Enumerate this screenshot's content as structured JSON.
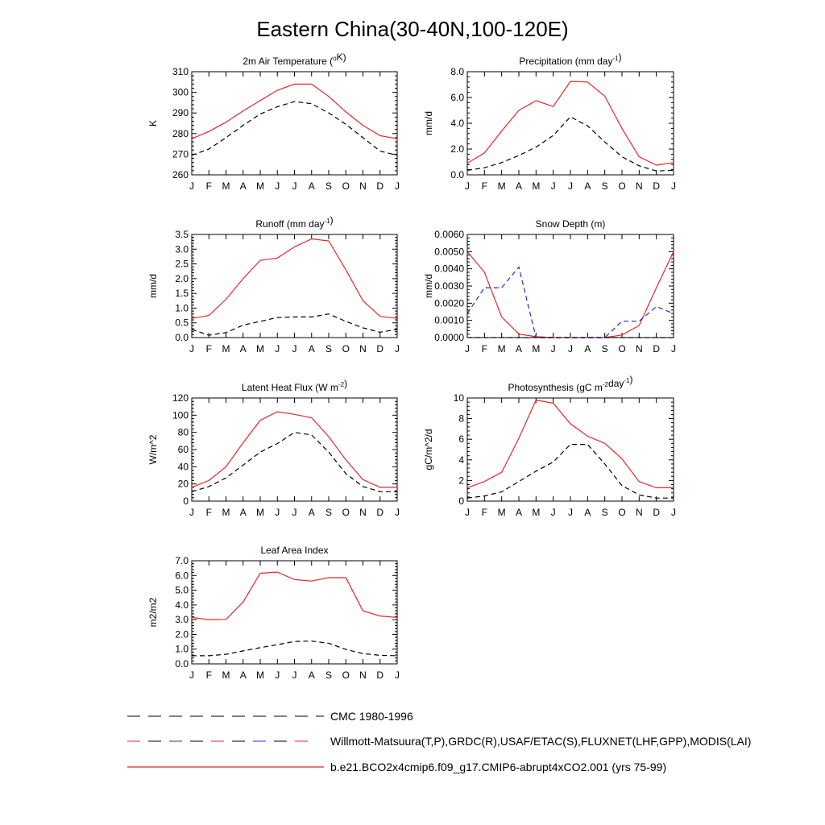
{
  "figure": {
    "title": "Eastern China(30-40N,100-120E)"
  },
  "colors": {
    "model": "#e8262a",
    "observed_black": "#000000",
    "observed_blue": "#1d2fd6",
    "axis": "#000000"
  },
  "legend": {
    "entries": [
      {
        "label": "CMC 1980-1996",
        "style": "dashed",
        "color": "#000000"
      },
      {
        "label": "Willmott-Matsuura(T,P),GRDC(R),USAF/ETAC(S),FLUXNET(LHF,GPP),MODIS(LAI)",
        "style": "dashed-multi",
        "color": "#e8262a"
      },
      {
        "label": "b.e21.BCO2x4cmip6.f09_g17.CMIP6-abrupt4xCO2.001 (yrs 75-99)",
        "style": "solid",
        "color": "#e8262a"
      }
    ]
  },
  "chart_data": [
    {
      "type": "line",
      "title_main": "2m Air Temperature (",
      "title_sup": "o",
      "title_end": "K)",
      "ylabel": "K",
      "x": [
        "J",
        "F",
        "M",
        "A",
        "M",
        "J",
        "J",
        "A",
        "S",
        "O",
        "N",
        "D",
        "J"
      ],
      "ylim": [
        260,
        310
      ],
      "yticks": [
        "260",
        "270",
        "280",
        "290",
        "300",
        "310"
      ],
      "grid": false,
      "series": [
        {
          "role": "model",
          "style": "solid",
          "color": "#e8262a",
          "values": [
            277.5,
            281,
            285.5,
            291,
            296,
            301,
            304,
            304,
            298,
            290.5,
            284,
            279,
            277.5
          ]
        },
        {
          "role": "observed",
          "style": "dashed",
          "color": "#000000",
          "values": [
            269.5,
            272.5,
            278,
            284,
            289.5,
            293,
            295.5,
            294.5,
            290,
            284.5,
            278,
            271.5,
            269.5
          ]
        }
      ]
    },
    {
      "type": "line",
      "title_main": "Precipitation (mm day",
      "title_sup": "-1",
      "title_end": ")",
      "ylabel": "mm/d",
      "x": [
        "J",
        "F",
        "M",
        "A",
        "M",
        "J",
        "J",
        "A",
        "S",
        "O",
        "N",
        "D",
        "J"
      ],
      "ylim": [
        0,
        8
      ],
      "yticks": [
        "0.0",
        "2.0",
        "4.0",
        "6.0",
        "8.0"
      ],
      "grid": false,
      "series": [
        {
          "role": "model",
          "style": "solid",
          "color": "#e8262a",
          "values": [
            0.9,
            1.7,
            3.4,
            5.0,
            5.75,
            5.3,
            7.25,
            7.2,
            6.1,
            3.6,
            1.4,
            0.75,
            0.95
          ]
        },
        {
          "role": "observed",
          "style": "dashed",
          "color": "#000000",
          "values": [
            0.35,
            0.55,
            0.95,
            1.5,
            2.15,
            3.05,
            4.5,
            3.8,
            2.55,
            1.4,
            0.7,
            0.3,
            0.35
          ]
        }
      ]
    },
    {
      "type": "line",
      "title_main": "Runoff (mm day",
      "title_sup": "-1",
      "title_end": ")",
      "ylabel": "mm/d",
      "x": [
        "J",
        "F",
        "M",
        "A",
        "M",
        "J",
        "J",
        "A",
        "S",
        "O",
        "N",
        "D",
        "J"
      ],
      "ylim": [
        0,
        3.5
      ],
      "yticks": [
        "0.0",
        "0.5",
        "1.0",
        "1.5",
        "2.0",
        "2.5",
        "3.0",
        "3.5"
      ],
      "grid": false,
      "series": [
        {
          "role": "model",
          "style": "solid",
          "color": "#e8262a",
          "values": [
            0.65,
            0.75,
            1.3,
            2.0,
            2.62,
            2.7,
            3.08,
            3.35,
            3.28,
            2.3,
            1.25,
            0.72,
            0.65
          ]
        },
        {
          "role": "observed",
          "style": "dashed",
          "color": "#000000",
          "values": [
            0.28,
            0.08,
            0.17,
            0.42,
            0.55,
            0.68,
            0.7,
            0.7,
            0.8,
            0.55,
            0.33,
            0.18,
            0.28
          ]
        }
      ]
    },
    {
      "type": "line",
      "title_main": "Snow Depth (m)",
      "title_sup": "",
      "title_end": "",
      "ylabel": "mm/d",
      "x": [
        "J",
        "F",
        "M",
        "A",
        "M",
        "J",
        "J",
        "A",
        "S",
        "O",
        "N",
        "D",
        "J"
      ],
      "ylim": [
        0,
        0.006
      ],
      "yticks": [
        "0.0000",
        "0.0010",
        "0.0020",
        "0.0030",
        "0.0040",
        "0.0050",
        "0.0060"
      ],
      "grid": false,
      "series": [
        {
          "role": "model",
          "style": "solid",
          "color": "#e8262a",
          "values": [
            0.005,
            0.0038,
            0.0012,
            0.0002,
            5e-05,
            0.0,
            0.0,
            0.0,
            0.0,
            0.00015,
            0.0007,
            0.0029,
            0.005
          ]
        },
        {
          "role": "observed",
          "style": "dashed",
          "color": "#1d2fd6",
          "values": [
            0.0014,
            0.0029,
            0.0029,
            0.0041,
            0.0,
            0.0,
            0.0,
            0.0,
            0.0,
            0.00095,
            0.00095,
            0.0018,
            0.0014
          ]
        },
        {
          "role": "observed2",
          "style": "dashed",
          "color": "#000000",
          "values": [
            0,
            0,
            0,
            0,
            0,
            0,
            0,
            0,
            0,
            0,
            0,
            0,
            0
          ]
        }
      ]
    },
    {
      "type": "line",
      "title_main": "Latent Heat Flux (W m",
      "title_sup": "-2",
      "title_end": ")",
      "ylabel": "W/m^2",
      "x": [
        "J",
        "F",
        "M",
        "A",
        "M",
        "J",
        "J",
        "A",
        "S",
        "O",
        "N",
        "D",
        "J"
      ],
      "ylim": [
        0,
        120
      ],
      "yticks": [
        "0",
        "20",
        "40",
        "60",
        "80",
        "100",
        "120"
      ],
      "grid": false,
      "series": [
        {
          "role": "model",
          "style": "solid",
          "color": "#e8262a",
          "values": [
            16,
            24,
            40,
            68,
            94,
            104,
            101,
            97,
            75,
            48,
            25,
            16,
            16
          ]
        },
        {
          "role": "observed",
          "style": "dashed",
          "color": "#000000",
          "values": [
            11,
            17,
            27,
            42,
            57,
            67,
            80,
            77,
            57,
            32,
            17,
            11,
            11
          ]
        }
      ]
    },
    {
      "type": "line",
      "title_main": "Photosynthesis (gC m",
      "title_sup": "-2",
      "title_mid": "day",
      "title_sup2": "-1",
      "title_end": ")",
      "ylabel": "gC/m^2/d",
      "x": [
        "J",
        "F",
        "M",
        "A",
        "M",
        "J",
        "J",
        "A",
        "S",
        "O",
        "N",
        "D",
        "J"
      ],
      "ylim": [
        0,
        10
      ],
      "yticks": [
        "0",
        "2",
        "4",
        "6",
        "8",
        "10"
      ],
      "grid": false,
      "series": [
        {
          "role": "model",
          "style": "solid",
          "color": "#e8262a",
          "values": [
            1.3,
            1.9,
            2.8,
            6.1,
            9.8,
            9.5,
            7.5,
            6.3,
            5.6,
            4.1,
            1.9,
            1.3,
            1.3
          ]
        },
        {
          "role": "observed",
          "style": "dashed",
          "color": "#000000",
          "values": [
            0.3,
            0.5,
            0.9,
            1.9,
            2.9,
            3.8,
            5.5,
            5.5,
            3.6,
            1.5,
            0.6,
            0.3,
            0.3
          ]
        }
      ]
    },
    {
      "type": "line",
      "title_main": "Leaf Area Index",
      "title_sup": "",
      "title_end": "",
      "ylabel": "m2/m2",
      "x": [
        "J",
        "F",
        "M",
        "A",
        "M",
        "J",
        "J",
        "A",
        "S",
        "O",
        "N",
        "D",
        "J"
      ],
      "ylim": [
        0,
        7
      ],
      "yticks": [
        "0.0",
        "1.0",
        "2.0",
        "3.0",
        "4.0",
        "5.0",
        "6.0",
        "7.0"
      ],
      "grid": false,
      "series": [
        {
          "role": "model",
          "style": "solid",
          "color": "#e8262a",
          "values": [
            3.15,
            3.0,
            3.02,
            4.2,
            6.15,
            6.23,
            5.72,
            5.62,
            5.85,
            5.85,
            3.6,
            3.25,
            3.15
          ]
        },
        {
          "role": "observed",
          "style": "dashed",
          "color": "#000000",
          "values": [
            0.55,
            0.55,
            0.65,
            0.88,
            1.1,
            1.3,
            1.52,
            1.55,
            1.4,
            0.98,
            0.7,
            0.58,
            0.55
          ]
        }
      ]
    }
  ]
}
